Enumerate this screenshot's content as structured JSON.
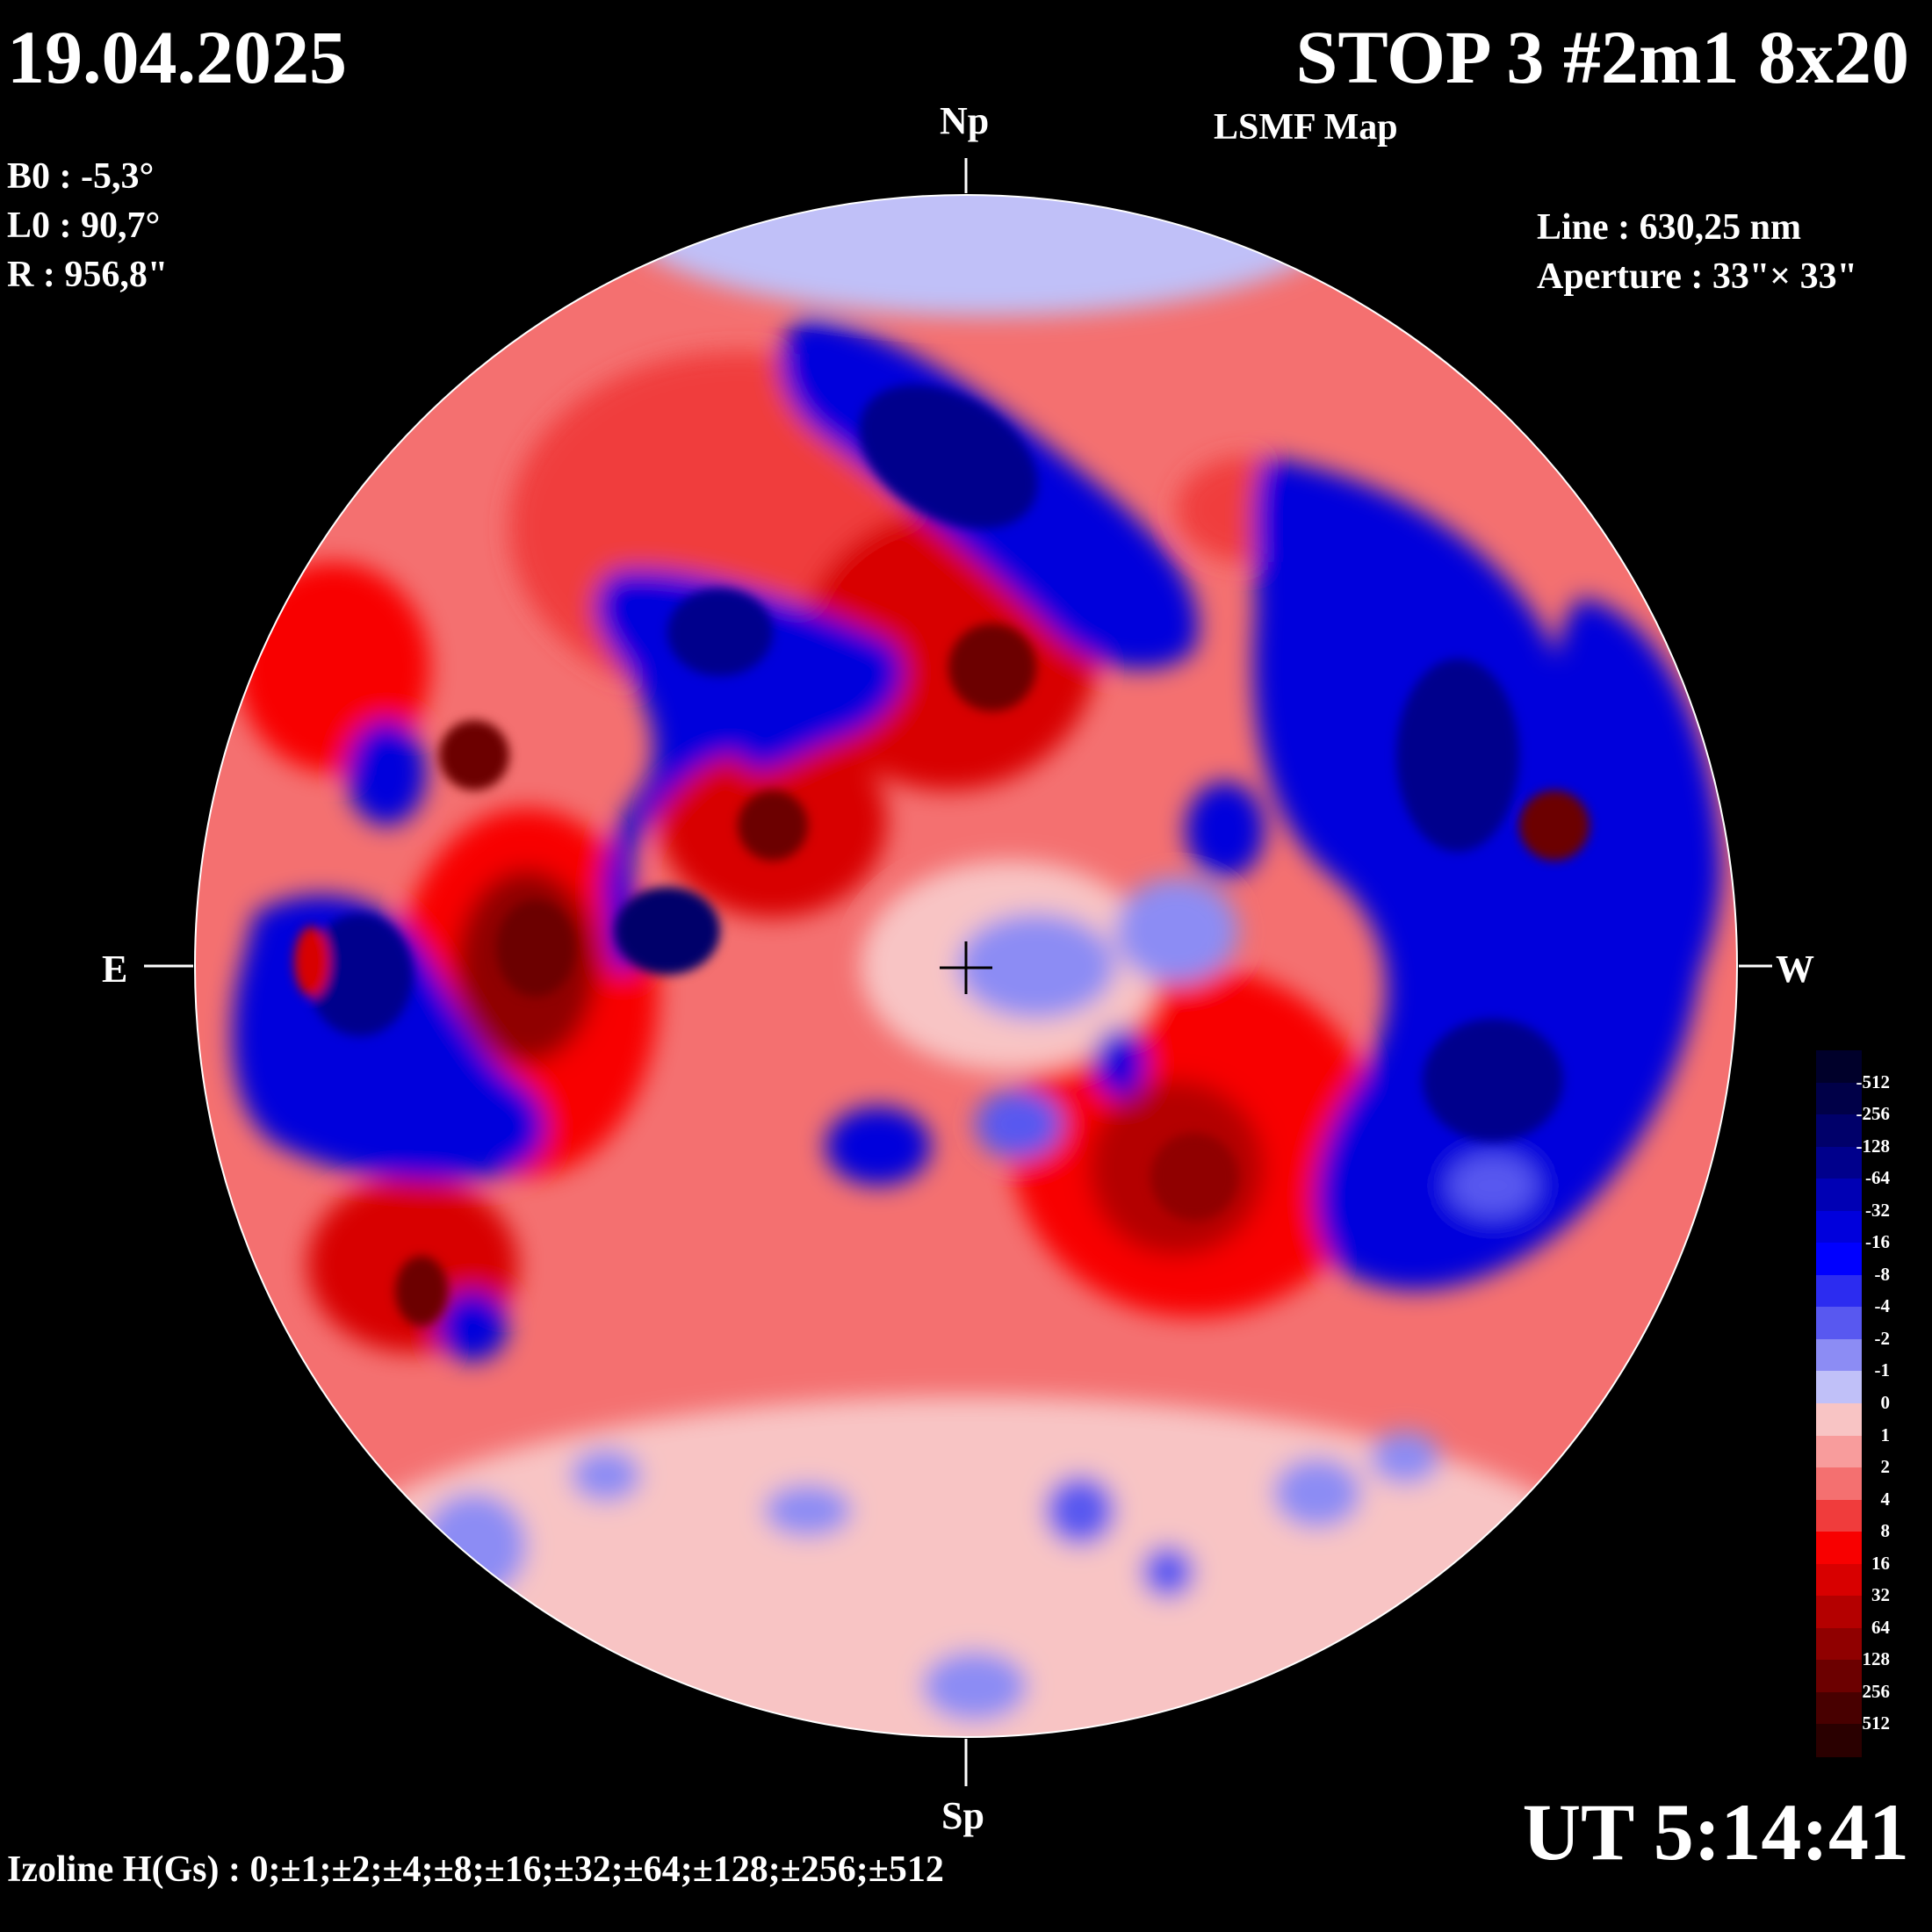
{
  "header": {
    "date": "19.04.2025",
    "title": "STOP 3 #2m1 8x20",
    "subtitle": "LSMF  Map"
  },
  "params": {
    "b0": "B0 : -5,3°",
    "l0": "L0 : 90,7°",
    "r": "R  : 956,8\"",
    "line": "Line :  630,25 nm",
    "aperture": "Aperture : 33\"× 33\""
  },
  "directions": {
    "north": "Np",
    "south": "Sp",
    "east": "E",
    "west": "W"
  },
  "footer": {
    "time": "UT 5:14:41",
    "izoline": "Izoline H(Gs) : 0;±1;±2;±4;±8;±16;±32;±64;±128;±256;±512"
  },
  "legend": {
    "labels": [
      "-512",
      "-256",
      "-128",
      "-64",
      "-32",
      "-16",
      "-8",
      "-4",
      "-2",
      "-1",
      "0",
      "1",
      "2",
      "4",
      "8",
      "16",
      "32",
      "64",
      "128",
      "256",
      "512"
    ],
    "colors": [
      "#00002a",
      "#000048",
      "#00006a",
      "#00008c",
      "#0000b4",
      "#0000dc",
      "#0000ff",
      "#2c2cf0",
      "#5858f0",
      "#8c8cf4",
      "#c0c0f8",
      "#f8c4c4",
      "#f89c9c",
      "#f47070",
      "#f03c3c",
      "#f80000",
      "#d80000",
      "#b40000",
      "#900000",
      "#6c0000",
      "#480000",
      "#2a0000"
    ]
  },
  "map_data": {
    "polarity_regions": [
      {
        "sign": "negative",
        "level": "strong",
        "location": "north band from NE to N-center"
      },
      {
        "sign": "negative",
        "level": "strong",
        "location": "west limb large arc"
      },
      {
        "sign": "negative",
        "level": "strong",
        "location": "east limb near equator"
      },
      {
        "sign": "negative",
        "level": "strong",
        "location": "east-center mid latitude"
      },
      {
        "sign": "positive",
        "level": "strong",
        "location": "central disk and south-east"
      },
      {
        "sign": "positive",
        "level": "strong",
        "location": "south-west center"
      },
      {
        "sign": "mixed",
        "level": "weak",
        "location": "southern quarter"
      }
    ]
  }
}
